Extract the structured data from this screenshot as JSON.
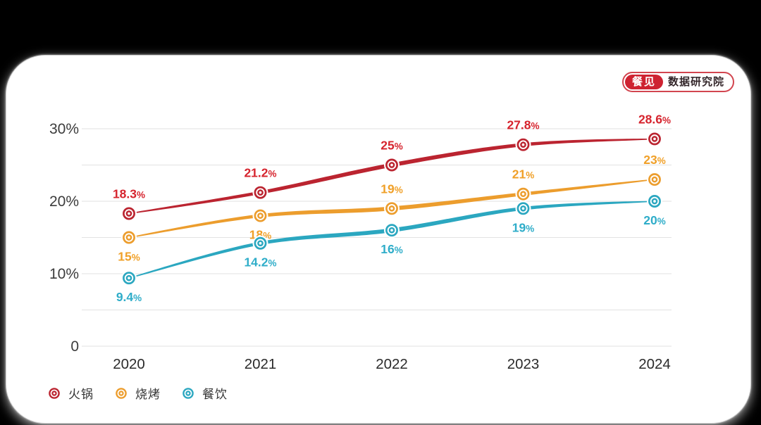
{
  "page": {
    "background": "#000000",
    "card_color": "#ffffff"
  },
  "badge": {
    "brand": "餐见",
    "suffix": "数据研究院",
    "brand_bg": "#ce2231",
    "border_color": "#d2454f"
  },
  "chart_data": {
    "type": "line",
    "categories": [
      "2020",
      "2021",
      "2022",
      "2023",
      "2024"
    ],
    "series": [
      {
        "id": "hotpot",
        "name": "火锅",
        "color": "#bb2430",
        "label_color": "#d6242e",
        "values": [
          18.3,
          21.2,
          25,
          27.8,
          28.6
        ],
        "labels": [
          "18.3%",
          "21.2%",
          "25%",
          "27.8%",
          "28.6%"
        ],
        "label_side": [
          "above",
          "above",
          "above",
          "above",
          "above"
        ]
      },
      {
        "id": "bbq",
        "name": "烧烤",
        "color": "#ec9d2d",
        "label_color": "#f0a028",
        "values": [
          15,
          18,
          19,
          21,
          23
        ],
        "labels": [
          "15%",
          "18%",
          "19%",
          "21%",
          "23%"
        ],
        "label_side": [
          "below",
          "below",
          "above",
          "above",
          "above"
        ]
      },
      {
        "id": "dining",
        "name": "餐饮",
        "color": "#2ba7c0",
        "label_color": "#2fadc9",
        "values": [
          9.4,
          14.2,
          16,
          19,
          20
        ],
        "labels": [
          "9.4%",
          "14.2%",
          "16%",
          "19%",
          "20%"
        ],
        "label_side": [
          "below",
          "below",
          "below",
          "below",
          "below"
        ]
      }
    ],
    "ylim": [
      0,
      30
    ],
    "ytick_step": 5,
    "ytick_labels": [
      {
        "value": 30,
        "label": "30%"
      },
      {
        "value": 20,
        "label": "20%"
      },
      {
        "value": 10,
        "label": "10%"
      },
      {
        "value": 0,
        "label": "0"
      }
    ],
    "grid": true,
    "gridline_color": "#e2e2e2",
    "axis_text_color": "#3c3c3c",
    "legend_position": "bottom-left"
  }
}
